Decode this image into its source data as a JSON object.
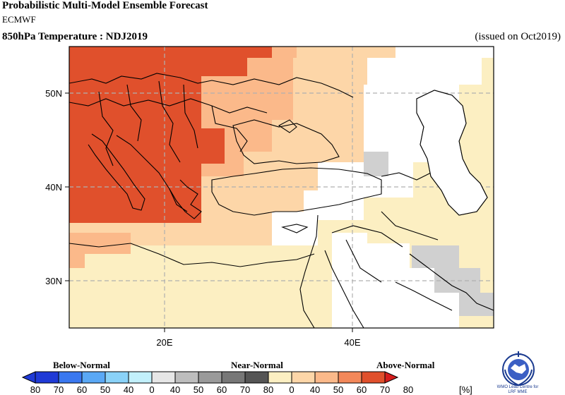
{
  "header": {
    "title": "Probabilistic Multi-Model Ensemble Forecast",
    "subtitle": "ECMWF",
    "variable": "850hPa Temperature : NDJ2019",
    "issued": "(issued on Oct2019)"
  },
  "map": {
    "lat_labels": [
      "50N",
      "40N",
      "30N"
    ],
    "lon_labels": [
      "20E",
      "40E"
    ],
    "colors": {
      "above_80": "#e0502c",
      "above_70": "#f3885a",
      "above_60": "#fbb98a",
      "above_50": "#fdd6a8",
      "above_40": "#fcefc2",
      "near_40": "#d0d0d0",
      "coast": "#000000",
      "grid": "#b0b0b0"
    }
  },
  "legend": {
    "below_label": "Below-Normal",
    "near_label": "Near-Normal",
    "above_label": "Above-Normal",
    "unit": "[%]",
    "below_colors": [
      "#1f3ad6",
      "#3a78f0",
      "#5aa8f5",
      "#8ad2f8",
      "#c2f0fb"
    ],
    "near_colors": [
      "#e6e6e6",
      "#bdbdbd",
      "#9a9a9a",
      "#777777",
      "#555555"
    ],
    "above_colors": [
      "#fcefc2",
      "#fdd6a8",
      "#fbb98a",
      "#f3885a",
      "#e0502c",
      "#d61d1d"
    ],
    "ticks": [
      "80",
      "70",
      "60",
      "50",
      "40",
      "0",
      "40",
      "50",
      "60",
      "70",
      "80",
      "0",
      "40",
      "50",
      "60",
      "70",
      "80"
    ]
  },
  "logo": {
    "text_line1": "WMO Lead Centre for",
    "text_line2": "LRF MME"
  }
}
